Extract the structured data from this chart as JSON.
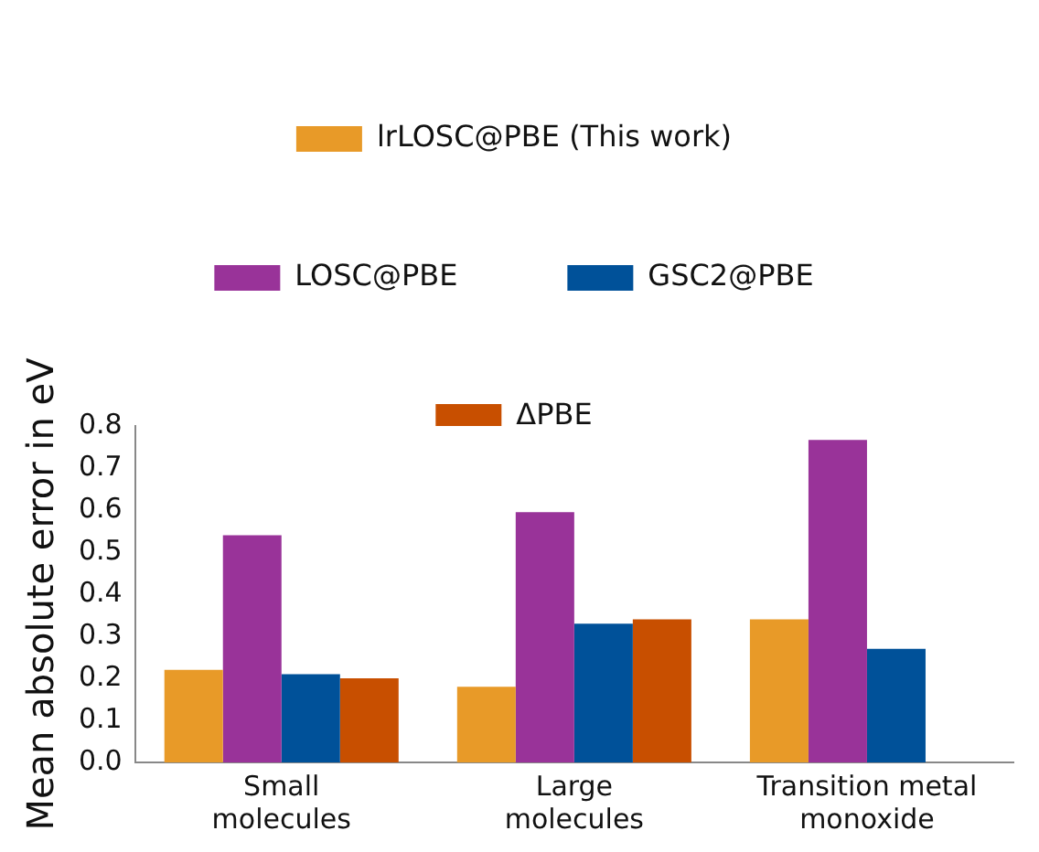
{
  "chart_data": {
    "type": "bar",
    "ylabel": "Mean absolute error in eV",
    "categories": [
      "Small molecules",
      "Large molecules",
      "Transition metal monoxide"
    ],
    "series": [
      {
        "name": "lrLOSC@PBE (This work)",
        "color": "#e89a28",
        "values": [
          0.22,
          0.18,
          0.34
        ]
      },
      {
        "name": "LOSC@PBE",
        "color": "#993399",
        "values": [
          0.54,
          0.595,
          0.767
        ]
      },
      {
        "name": "GSC2@PBE",
        "color": "#005199",
        "values": [
          0.21,
          0.33,
          0.27
        ]
      },
      {
        "name": "ΔPBE",
        "color": "#c84f00",
        "values": [
          0.2,
          0.34,
          null
        ]
      }
    ],
    "ylim": [
      0,
      0.8
    ],
    "yticks": [
      {
        "value": 0,
        "label": "0.0"
      },
      0.1,
      0.2,
      0.3,
      0.4,
      0.5,
      0.6,
      0.7,
      0.8
    ],
    "grid": false,
    "legend": "top"
  }
}
